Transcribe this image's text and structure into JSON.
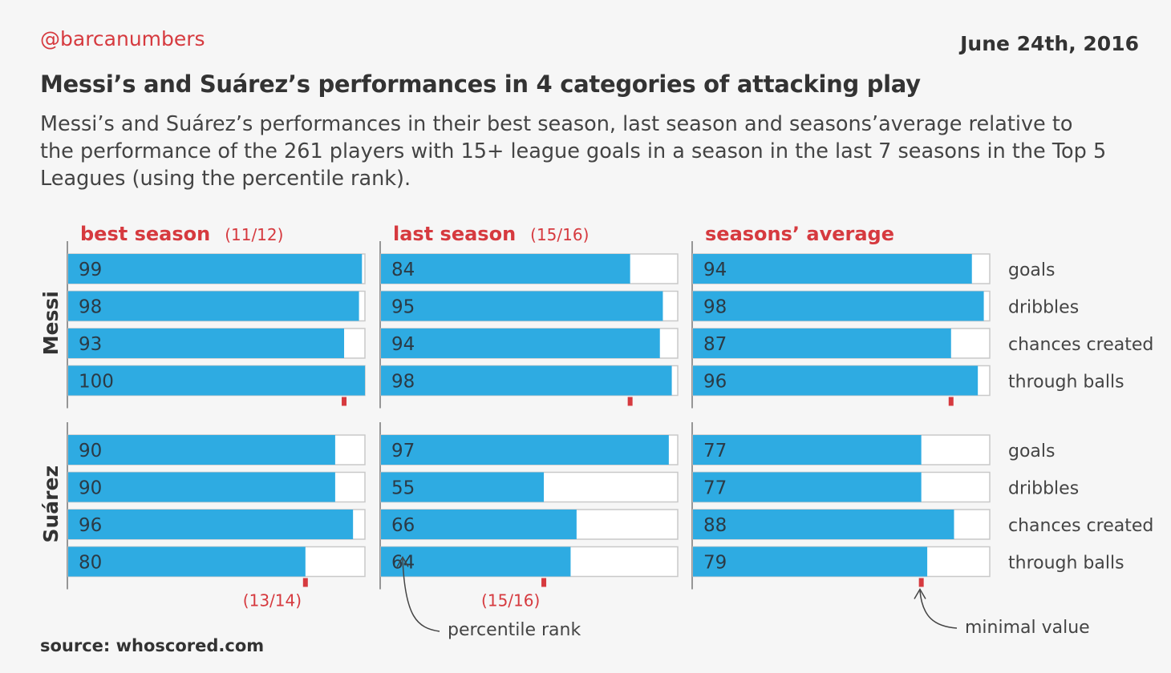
{
  "header": {
    "handle": "@barcanumbers",
    "date": "June 24th, 2016",
    "title": "Messi’s and Suárez’s performances in 4 categories of attacking play",
    "subtitle": "Messi’s and Suárez’s performances in their best season, last season and seasons’average relative to the performance of the 261 players with 15+ league goals in a season in the last 7 seasons in the Top 5 Leagues (using the percentile rank).",
    "source": "source: whoscored.com"
  },
  "colors": {
    "bar": "#2eabe2",
    "accent": "#d63a3f",
    "text": "#333333"
  },
  "chart_data": {
    "type": "bar",
    "orientation": "horizontal",
    "xlim": [
      0,
      100
    ],
    "categories": [
      "goals",
      "dribbles",
      "chances created",
      "through balls"
    ],
    "panels": [
      {
        "label": "best season",
        "season": "(11/12)"
      },
      {
        "label": "last season",
        "season": "(15/16)"
      },
      {
        "label": "seasons’ average",
        "season": ""
      }
    ],
    "players": [
      {
        "name": "Messi",
        "values": [
          [
            99,
            98,
            93,
            100
          ],
          [
            84,
            95,
            94,
            98
          ],
          [
            94,
            98,
            87,
            96
          ]
        ],
        "minimal_value": [
          93,
          84,
          87
        ],
        "panel_seasons": [
          "",
          "",
          ""
        ]
      },
      {
        "name": "Suárez",
        "values": [
          [
            90,
            90,
            96,
            80
          ],
          [
            97,
            55,
            66,
            64
          ],
          [
            77,
            77,
            88,
            79
          ]
        ],
        "minimal_value": [
          80,
          55,
          77
        ],
        "panel_seasons": [
          "(13/14)",
          "(15/16)",
          ""
        ]
      }
    ],
    "annotations": {
      "percentile_rank": "percentile rank",
      "minimal_value": "minimal value"
    }
  }
}
